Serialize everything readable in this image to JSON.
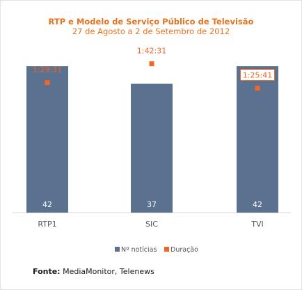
{
  "chart_data": {
    "type": "bar",
    "title": "RTP e Modelo de Serviço Público de Televisão",
    "subtitle": "27 de Agosto a 2 de Setembro de 2012",
    "categories": [
      "RTP1",
      "SIC",
      "TVI"
    ],
    "series": [
      {
        "name": "Nº notícias",
        "type": "bar",
        "color": "#5b7190",
        "values": [
          42,
          37,
          42
        ],
        "labels": [
          "42",
          "37",
          "42"
        ]
      },
      {
        "name": "Duração",
        "type": "scatter",
        "color": "#f26522",
        "values_seconds": [
          5371,
          6151,
          5141
        ],
        "labels": [
          "1:29:31",
          "1:42:31",
          "1:25:41"
        ]
      }
    ],
    "ylim_bars": [
      0,
      50
    ],
    "ylim_duration_seconds": [
      0,
      7200
    ],
    "grid": false,
    "legend_position": "bottom"
  },
  "source": {
    "label": "Fonte:",
    "text": " MediaMonitor, Telenews"
  }
}
